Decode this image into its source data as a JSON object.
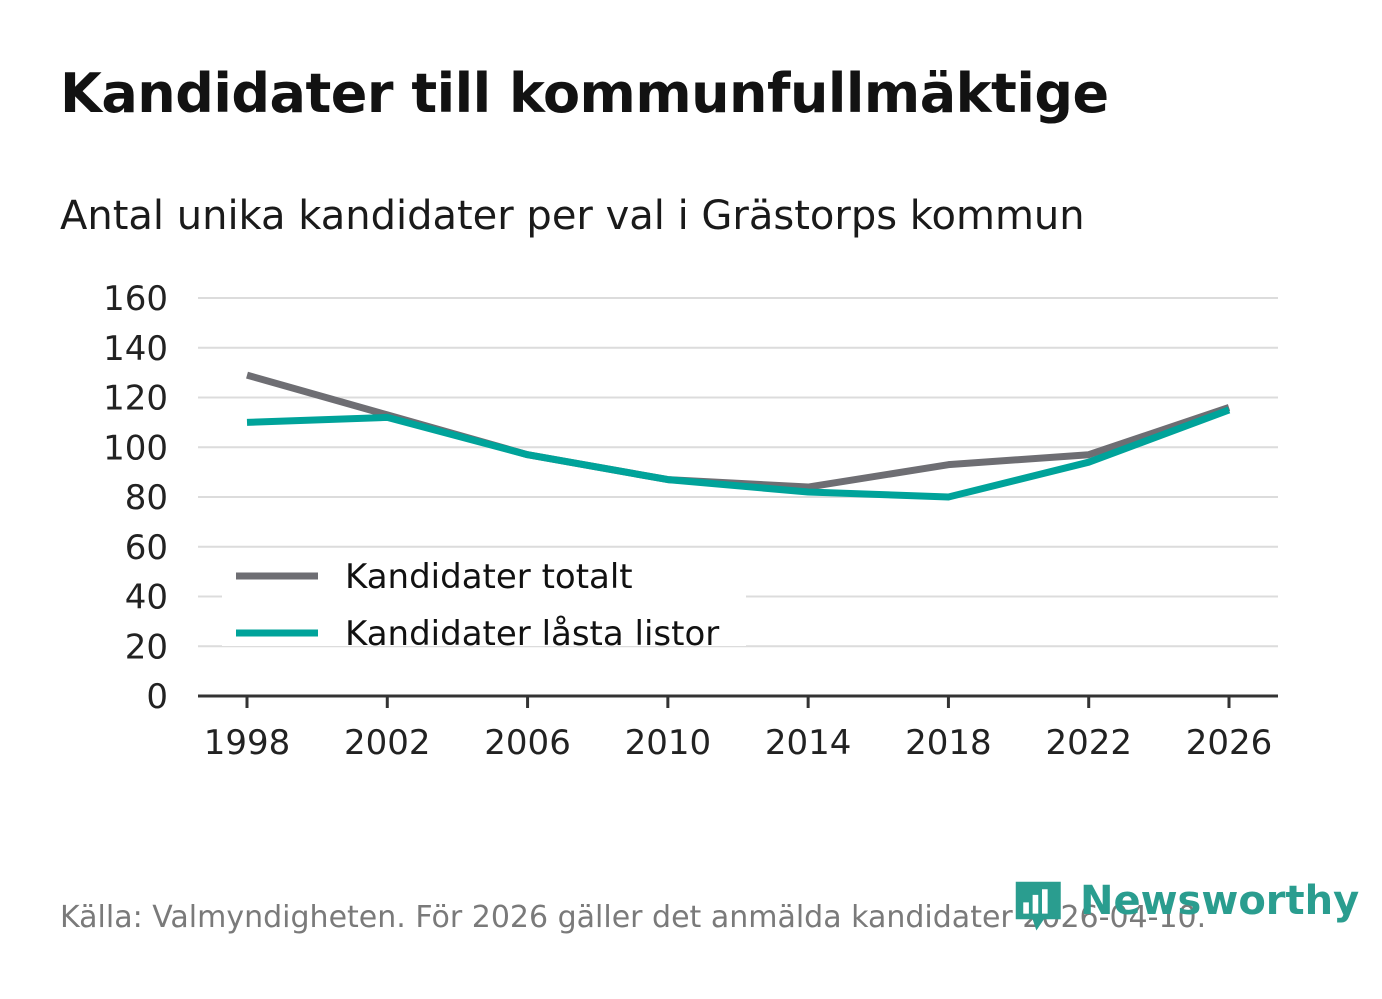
{
  "header": {
    "title": "Kandidater till kommunfullmäktige",
    "subtitle": "Antal unika kandidater per val i Grästorps kommun"
  },
  "footer": {
    "source": "Källa: Valmyndigheten. För 2026 gäller det anmälda kandidater 2026-04-10.",
    "brand": "Newsworthy",
    "brand_color": "#2a9d8f"
  },
  "chart_data": {
    "type": "line",
    "x": [
      "1998",
      "2002",
      "2006",
      "2010",
      "2014",
      "2018",
      "2022",
      "2026"
    ],
    "ylim": [
      0,
      160
    ],
    "yticks": [
      0,
      20,
      40,
      60,
      80,
      100,
      120,
      140,
      160
    ],
    "grid": true,
    "legend_position": "bottom-left",
    "series": [
      {
        "name": "Kandidater totalt",
        "color": "#6e6e73",
        "values": [
          129,
          113,
          97,
          87,
          84,
          93,
          97,
          116
        ]
      },
      {
        "name": "Kandidater låsta listor",
        "color": "#00a39a",
        "values": [
          110,
          112,
          97,
          87,
          82,
          80,
          94,
          115
        ]
      }
    ]
  }
}
